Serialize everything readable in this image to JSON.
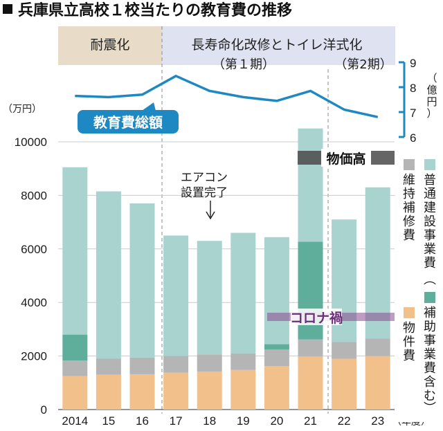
{
  "title": "兵庫県立高校１校当たりの教育費の推移",
  "periods": {
    "taishin": "耐震化",
    "chouju": "長寿命化改修とトイレ洋式化",
    "phase1": "（第１期）",
    "phase2": "（第2期）"
  },
  "annotations": {
    "aircon_line1": "エアコン",
    "aircon_line2": "設置完了",
    "bukka": "物価高",
    "corona": "コロナ禍"
  },
  "legend": {
    "ippan": "普通建設事業費",
    "hojo": "補助事業費含む",
    "iji": "維持補修費",
    "bukken": "物件費"
  },
  "colors": {
    "ippan": "#a8d3cf",
    "hojo": "#5fae9b",
    "iji": "#b5b5b5",
    "bukken": "#f2c08a",
    "line": "#1e88c2",
    "band_taishin": "#e8dcc8",
    "band_chouju": "#dfe3f1"
  },
  "chart_data": [
    {
      "type": "bar",
      "stacked": true,
      "categories": [
        "2014",
        "15",
        "16",
        "17",
        "18",
        "19",
        "20",
        "21",
        "22",
        "23"
      ],
      "xlabel": "（年度）",
      "ylabel": "（万円）",
      "ylim": [
        0,
        11000
      ],
      "yticks": [
        0,
        2000,
        4000,
        6000,
        8000,
        10000
      ],
      "grid": true,
      "series": [
        {
          "name": "物件費",
          "key": "bukken",
          "values": [
            1250,
            1300,
            1320,
            1380,
            1420,
            1480,
            1620,
            1980,
            1900,
            2000
          ]
        },
        {
          "name": "維持補修費",
          "key": "iji",
          "values": [
            580,
            600,
            620,
            620,
            640,
            620,
            620,
            640,
            620,
            650
          ]
        },
        {
          "name": "補助事業費含む",
          "key": "hojo",
          "values": [
            970,
            0,
            0,
            0,
            0,
            0,
            200,
            3650,
            0,
            0
          ]
        },
        {
          "name": "普通建設事業費",
          "key": "ippan",
          "values": [
            6250,
            6250,
            5760,
            4500,
            4240,
            4500,
            4000,
            4230,
            4580,
            5650
          ]
        }
      ]
    },
    {
      "type": "line",
      "name": "教育費総額",
      "categories": [
        "2014",
        "15",
        "16",
        "17",
        "18",
        "19",
        "20",
        "21",
        "22",
        "23"
      ],
      "values": [
        7.65,
        7.6,
        7.7,
        8.45,
        7.85,
        7.6,
        7.45,
        7.85,
        7.1,
        6.8
      ],
      "ylabel": "（億円）",
      "ylim": [
        6,
        9
      ],
      "yticks": [
        6,
        7,
        8,
        9
      ]
    }
  ]
}
